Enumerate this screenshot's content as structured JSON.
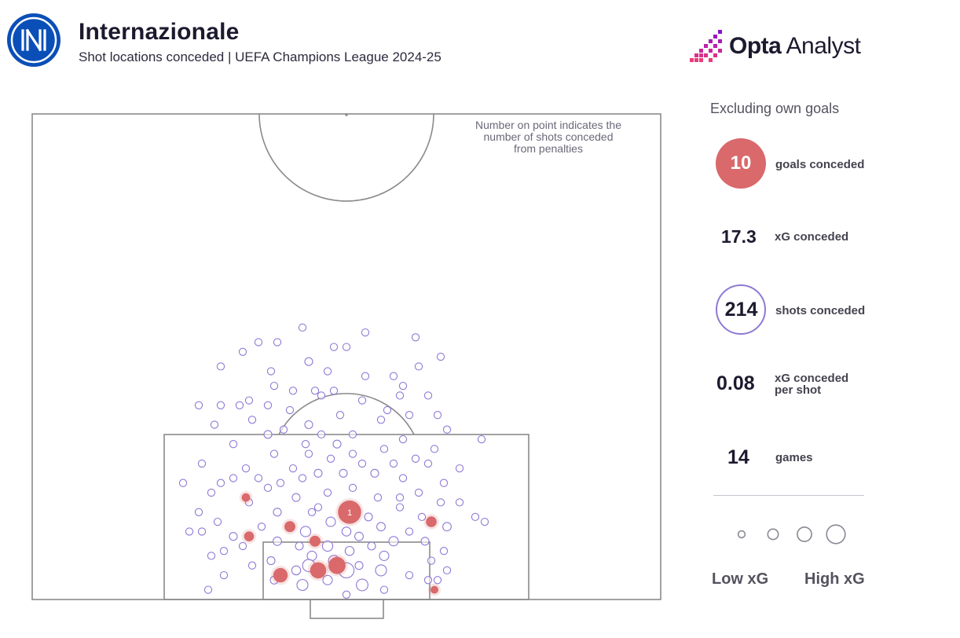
{
  "header": {
    "title": "Internazionale",
    "subtitle": "Shot locations conceded | UEFA Champions League 2024-25",
    "brand": {
      "bold": "Opta",
      "light": " Analyst"
    }
  },
  "pitch_note": {
    "lines": [
      "Number on point indicates the",
      "number of shots conceded",
      "from penalties"
    ]
  },
  "stats": {
    "excluding_note": "Excluding own goals",
    "goals": {
      "value": "10",
      "label": "goals conceded"
    },
    "xg": {
      "value": "17.3",
      "label": "xG conceded"
    },
    "shots": {
      "value": "214",
      "label": "shots conceded"
    },
    "xg_per_shot": {
      "value": "0.08",
      "label_lines": [
        "xG conceded",
        "per shot"
      ]
    },
    "games": {
      "value": "14",
      "label": "games"
    }
  },
  "legend": {
    "low_label": "Low xG",
    "high_label": "High xG",
    "sizes_xg": [
      0.02,
      0.1,
      0.25,
      0.5
    ]
  },
  "colors": {
    "goal": "#d9696b",
    "shot": "#8f79d4",
    "pitch_line": "#8a8a8a",
    "text_dark": "#1c1a2e"
  },
  "chart_data": {
    "type": "scatter",
    "title": "Shot locations conceded",
    "coordinate_system": "opta pitch units: x = distance from halfway line toward defended goal (50-100), y = width (0-100)",
    "penalty_label": "1",
    "goals": [
      {
        "x": 91.0,
        "y": 50.5,
        "xg": 0.76,
        "penalty": true
      },
      {
        "x": 97.5,
        "y": 39.5,
        "xg": 0.22
      },
      {
        "x": 97.0,
        "y": 45.5,
        "xg": 0.3
      },
      {
        "x": 96.5,
        "y": 48.5,
        "xg": 0.35
      },
      {
        "x": 92.5,
        "y": 41.0,
        "xg": 0.1
      },
      {
        "x": 94.0,
        "y": 45.0,
        "xg": 0.1
      },
      {
        "x": 93.5,
        "y": 34.5,
        "xg": 0.07
      },
      {
        "x": 92.0,
        "y": 63.5,
        "xg": 0.09
      },
      {
        "x": 89.5,
        "y": 34.0,
        "xg": 0.04
      },
      {
        "x": 99.0,
        "y": 64.0,
        "xg": 0.03
      }
    ],
    "shots": [
      {
        "x": 72.0,
        "y": 43.0,
        "xg": 0.02
      },
      {
        "x": 72.5,
        "y": 53.0,
        "xg": 0.02
      },
      {
        "x": 73.5,
        "y": 36.0,
        "xg": 0.02
      },
      {
        "x": 73.0,
        "y": 61.0,
        "xg": 0.02
      },
      {
        "x": 73.5,
        "y": 39.0,
        "xg": 0.02
      },
      {
        "x": 74.0,
        "y": 48.0,
        "xg": 0.02
      },
      {
        "x": 74.0,
        "y": 50.0,
        "xg": 0.02
      },
      {
        "x": 74.5,
        "y": 33.5,
        "xg": 0.02
      },
      {
        "x": 75.0,
        "y": 65.0,
        "xg": 0.02
      },
      {
        "x": 75.5,
        "y": 44.0,
        "xg": 0.03
      },
      {
        "x": 76.0,
        "y": 30.0,
        "xg": 0.02
      },
      {
        "x": 76.0,
        "y": 61.5,
        "xg": 0.02
      },
      {
        "x": 76.5,
        "y": 38.0,
        "xg": 0.02
      },
      {
        "x": 77.0,
        "y": 53.0,
        "xg": 0.02
      },
      {
        "x": 77.0,
        "y": 57.5,
        "xg": 0.02
      },
      {
        "x": 78.0,
        "y": 38.5,
        "xg": 0.02
      },
      {
        "x": 78.0,
        "y": 59.0,
        "xg": 0.02
      },
      {
        "x": 78.5,
        "y": 45.0,
        "xg": 0.02
      },
      {
        "x": 78.5,
        "y": 41.5,
        "xg": 0.02
      },
      {
        "x": 78.5,
        "y": 48.0,
        "xg": 0.02
      },
      {
        "x": 79.0,
        "y": 63.0,
        "xg": 0.02
      },
      {
        "x": 79.0,
        "y": 58.5,
        "xg": 0.02
      },
      {
        "x": 79.5,
        "y": 34.5,
        "xg": 0.02
      },
      {
        "x": 79.5,
        "y": 52.5,
        "xg": 0.02
      },
      {
        "x": 80.0,
        "y": 30.0,
        "xg": 0.02
      },
      {
        "x": 80.0,
        "y": 37.5,
        "xg": 0.02
      },
      {
        "x": 80.5,
        "y": 56.5,
        "xg": 0.02
      },
      {
        "x": 80.5,
        "y": 41.0,
        "xg": 0.02
      },
      {
        "x": 81.0,
        "y": 49.0,
        "xg": 0.02
      },
      {
        "x": 81.0,
        "y": 60.0,
        "xg": 0.02
      },
      {
        "x": 81.5,
        "y": 35.0,
        "xg": 0.02
      },
      {
        "x": 81.5,
        "y": 55.5,
        "xg": 0.02
      },
      {
        "x": 82.0,
        "y": 44.0,
        "xg": 0.03
      },
      {
        "x": 82.0,
        "y": 29.0,
        "xg": 0.02
      },
      {
        "x": 82.5,
        "y": 66.0,
        "xg": 0.02
      },
      {
        "x": 83.0,
        "y": 37.5,
        "xg": 0.03
      },
      {
        "x": 83.0,
        "y": 51.0,
        "xg": 0.02
      },
      {
        "x": 83.5,
        "y": 59.0,
        "xg": 0.02
      },
      {
        "x": 84.0,
        "y": 32.0,
        "xg": 0.02
      },
      {
        "x": 84.0,
        "y": 43.5,
        "xg": 0.02
      },
      {
        "x": 84.5,
        "y": 56.0,
        "xg": 0.02
      },
      {
        "x": 84.5,
        "y": 64.0,
        "xg": 0.02
      },
      {
        "x": 85.0,
        "y": 38.5,
        "xg": 0.02
      },
      {
        "x": 85.5,
        "y": 47.5,
        "xg": 0.02
      },
      {
        "x": 85.5,
        "y": 61.0,
        "xg": 0.02
      },
      {
        "x": 86.0,
        "y": 27.0,
        "xg": 0.02
      },
      {
        "x": 86.0,
        "y": 52.5,
        "xg": 0.02
      },
      {
        "x": 86.5,
        "y": 34.0,
        "xg": 0.02
      },
      {
        "x": 86.5,
        "y": 41.5,
        "xg": 0.02
      },
      {
        "x": 86.5,
        "y": 68.0,
        "xg": 0.02
      },
      {
        "x": 87.0,
        "y": 45.5,
        "xg": 0.03
      },
      {
        "x": 87.0,
        "y": 49.5,
        "xg": 0.03
      },
      {
        "x": 87.0,
        "y": 54.5,
        "xg": 0.03
      },
      {
        "x": 87.5,
        "y": 43.0,
        "xg": 0.02
      },
      {
        "x": 87.5,
        "y": 36.0,
        "xg": 0.02
      },
      {
        "x": 87.5,
        "y": 59.0,
        "xg": 0.02
      },
      {
        "x": 88.0,
        "y": 65.5,
        "xg": 0.02
      },
      {
        "x": 88.0,
        "y": 30.0,
        "xg": 0.02
      },
      {
        "x": 88.0,
        "y": 39.5,
        "xg": 0.02
      },
      {
        "x": 88.5,
        "y": 51.0,
        "xg": 0.02
      },
      {
        "x": 88.5,
        "y": 37.5,
        "xg": 0.02
      },
      {
        "x": 89.0,
        "y": 47.0,
        "xg": 0.02
      },
      {
        "x": 89.0,
        "y": 28.5,
        "xg": 0.02
      },
      {
        "x": 89.0,
        "y": 61.5,
        "xg": 0.02
      },
      {
        "x": 89.5,
        "y": 42.0,
        "xg": 0.03
      },
      {
        "x": 89.5,
        "y": 55.0,
        "xg": 0.02
      },
      {
        "x": 90.0,
        "y": 34.5,
        "xg": 0.02
      },
      {
        "x": 90.0,
        "y": 65.0,
        "xg": 0.02
      },
      {
        "x": 90.5,
        "y": 45.5,
        "xg": 0.02
      },
      {
        "x": 90.5,
        "y": 58.5,
        "xg": 0.02
      },
      {
        "x": 91.0,
        "y": 26.5,
        "xg": 0.02
      },
      {
        "x": 91.0,
        "y": 39.0,
        "xg": 0.03
      },
      {
        "x": 91.5,
        "y": 53.5,
        "xg": 0.03
      },
      {
        "x": 91.5,
        "y": 62.0,
        "xg": 0.02
      },
      {
        "x": 91.5,
        "y": 70.5,
        "xg": 0.02
      },
      {
        "x": 92.0,
        "y": 29.5,
        "xg": 0.02
      },
      {
        "x": 92.0,
        "y": 47.5,
        "xg": 0.06
      },
      {
        "x": 92.5,
        "y": 55.5,
        "xg": 0.04
      },
      {
        "x": 92.5,
        "y": 66.0,
        "xg": 0.04
      },
      {
        "x": 92.5,
        "y": 36.5,
        "xg": 0.02
      },
      {
        "x": 93.0,
        "y": 43.5,
        "xg": 0.08
      },
      {
        "x": 93.0,
        "y": 50.0,
        "xg": 0.05
      },
      {
        "x": 93.0,
        "y": 27.0,
        "xg": 0.02
      },
      {
        "x": 93.0,
        "y": 60.0,
        "xg": 0.02
      },
      {
        "x": 93.5,
        "y": 32.0,
        "xg": 0.03
      },
      {
        "x": 93.5,
        "y": 52.0,
        "xg": 0.04
      },
      {
        "x": 94.0,
        "y": 57.5,
        "xg": 0.06
      },
      {
        "x": 94.0,
        "y": 39.0,
        "xg": 0.04
      },
      {
        "x": 94.0,
        "y": 62.5,
        "xg": 0.03
      },
      {
        "x": 94.5,
        "y": 47.0,
        "xg": 0.08
      },
      {
        "x": 94.5,
        "y": 54.0,
        "xg": 0.03
      },
      {
        "x": 94.5,
        "y": 42.5,
        "xg": 0.03
      },
      {
        "x": 94.5,
        "y": 33.5,
        "xg": 0.02
      },
      {
        "x": 95.0,
        "y": 50.5,
        "xg": 0.05
      },
      {
        "x": 95.0,
        "y": 65.5,
        "xg": 0.02
      },
      {
        "x": 95.0,
        "y": 30.5,
        "xg": 0.02
      },
      {
        "x": 95.5,
        "y": 44.5,
        "xg": 0.06
      },
      {
        "x": 95.5,
        "y": 56.0,
        "xg": 0.06
      },
      {
        "x": 96.0,
        "y": 48.0,
        "xg": 0.09
      },
      {
        "x": 96.0,
        "y": 38.0,
        "xg": 0.03
      },
      {
        "x": 96.0,
        "y": 63.5,
        "xg": 0.02
      },
      {
        "x": 96.5,
        "y": 52.0,
        "xg": 0.03
      },
      {
        "x": 96.5,
        "y": 35.0,
        "xg": 0.02
      },
      {
        "x": 96.5,
        "y": 44.0,
        "xg": 0.14
      },
      {
        "x": 97.0,
        "y": 42.0,
        "xg": 0.05
      },
      {
        "x": 97.0,
        "y": 50.0,
        "xg": 0.25
      },
      {
        "x": 97.0,
        "y": 55.5,
        "xg": 0.1
      },
      {
        "x": 97.5,
        "y": 60.0,
        "xg": 0.02
      },
      {
        "x": 97.5,
        "y": 30.5,
        "xg": 0.02
      },
      {
        "x": 98.0,
        "y": 38.5,
        "xg": 0.03
      },
      {
        "x": 98.0,
        "y": 47.0,
        "xg": 0.06
      },
      {
        "x": 98.0,
        "y": 63.0,
        "xg": 0.02
      },
      {
        "x": 98.5,
        "y": 43.0,
        "xg": 0.1
      },
      {
        "x": 98.5,
        "y": 52.5,
        "xg": 0.12
      },
      {
        "x": 99.0,
        "y": 56.0,
        "xg": 0.02
      },
      {
        "x": 99.0,
        "y": 28.0,
        "xg": 0.02
      },
      {
        "x": 98.0,
        "y": 64.5,
        "xg": 0.02
      },
      {
        "x": 97.0,
        "y": 66.0,
        "xg": 0.02
      },
      {
        "x": 99.5,
        "y": 50.0,
        "xg": 0.02
      },
      {
        "x": 95.5,
        "y": 28.5,
        "xg": 0.02
      },
      {
        "x": 90.0,
        "y": 68.0,
        "xg": 0.02
      },
      {
        "x": 88.0,
        "y": 24.0,
        "xg": 0.02
      },
      {
        "x": 83.5,
        "y": 71.5,
        "xg": 0.02
      },
      {
        "x": 80.0,
        "y": 26.5,
        "xg": 0.02
      },
      {
        "x": 84.0,
        "y": 48.5,
        "xg": 0.03
      },
      {
        "x": 85.0,
        "y": 44.0,
        "xg": 0.02
      },
      {
        "x": 79.0,
        "y": 46.0,
        "xg": 0.02
      },
      {
        "x": 76.5,
        "y": 47.0,
        "xg": 0.02
      },
      {
        "x": 80.0,
        "y": 33.0,
        "xg": 0.02
      },
      {
        "x": 81.0,
        "y": 64.5,
        "xg": 0.02
      },
      {
        "x": 86.0,
        "y": 57.5,
        "xg": 0.02
      },
      {
        "x": 82.5,
        "y": 40.0,
        "xg": 0.02
      },
      {
        "x": 92.0,
        "y": 72.0,
        "xg": 0.02
      },
      {
        "x": 86.0,
        "y": 63.0,
        "xg": 0.02
      },
      {
        "x": 93.0,
        "y": 25.0,
        "xg": 0.02
      },
      {
        "x": 91.0,
        "y": 44.5,
        "xg": 0.02
      },
      {
        "x": 89.5,
        "y": 58.5,
        "xg": 0.02
      },
      {
        "x": 87.5,
        "y": 32.0,
        "xg": 0.02
      },
      {
        "x": 85.0,
        "y": 51.0,
        "xg": 0.02
      },
      {
        "x": 83.0,
        "y": 46.0,
        "xg": 0.02
      }
    ]
  }
}
